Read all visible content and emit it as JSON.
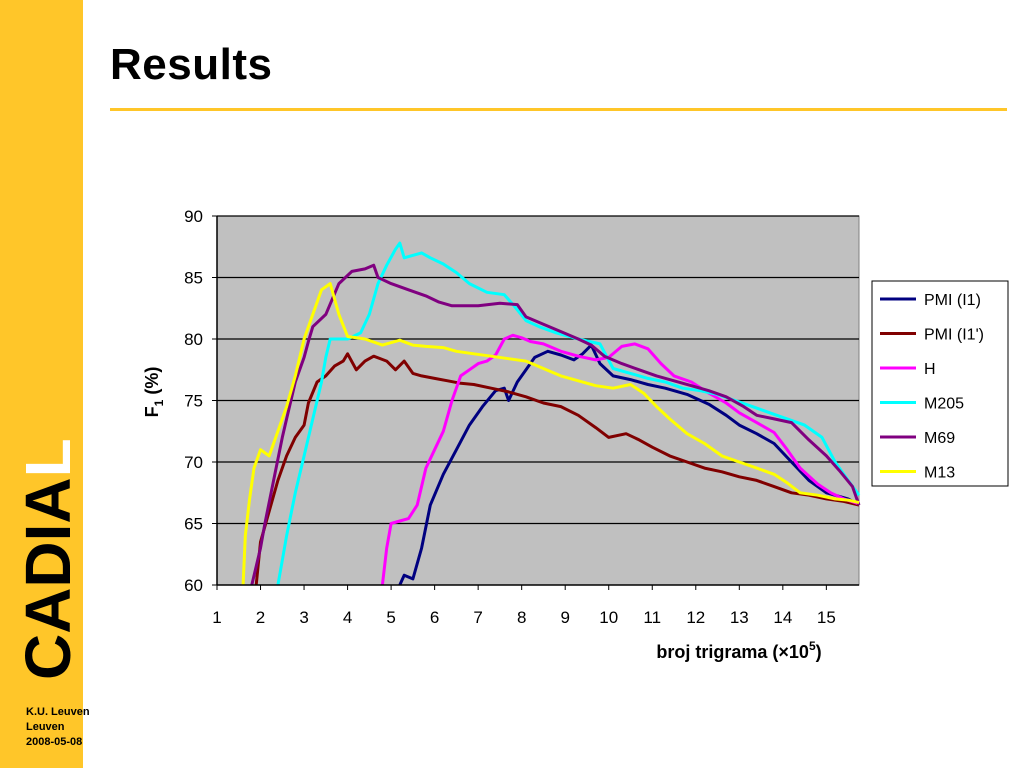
{
  "slide": {
    "title": "Results",
    "footer": [
      "K.U. Leuven",
      "Leuven",
      "2008-05-08"
    ],
    "logo_text": "CADIAL"
  },
  "colors": {
    "accent": "#ffc629",
    "plot_bg": "#c0c0c0"
  },
  "chart_data": {
    "type": "line",
    "title": "",
    "xlabel_main": "broj trigrama (×10",
    "xlabel_sup": "5",
    "xlabel_end": ")",
    "ylabel_main": "F",
    "ylabel_sub": "1",
    "ylabel_end": " (%)",
    "xlim": [
      1,
      15.75
    ],
    "ylim": [
      60,
      90
    ],
    "xticks": [
      1,
      2,
      3,
      4,
      5,
      6,
      7,
      8,
      9,
      10,
      11,
      12,
      13,
      14,
      15
    ],
    "yticks": [
      60,
      65,
      70,
      75,
      80,
      85,
      90
    ],
    "grid": "horizontal",
    "legend_position": "right",
    "series": [
      {
        "name": "PMI (I1)",
        "color": "#000080",
        "points": [
          [
            5.2,
            60
          ],
          [
            5.3,
            60.8
          ],
          [
            5.5,
            60.5
          ],
          [
            5.7,
            63
          ],
          [
            5.9,
            66.5
          ],
          [
            6.2,
            69
          ],
          [
            6.5,
            71
          ],
          [
            6.8,
            73
          ],
          [
            7.1,
            74.5
          ],
          [
            7.4,
            75.8
          ],
          [
            7.6,
            76
          ],
          [
            7.7,
            75
          ],
          [
            7.9,
            76.5
          ],
          [
            8.1,
            77.5
          ],
          [
            8.3,
            78.5
          ],
          [
            8.6,
            79
          ],
          [
            8.9,
            78.7
          ],
          [
            9.2,
            78.3
          ],
          [
            9.4,
            78.8
          ],
          [
            9.6,
            79.5
          ],
          [
            9.8,
            78
          ],
          [
            10.1,
            77
          ],
          [
            10.5,
            76.7
          ],
          [
            10.9,
            76.3
          ],
          [
            11.3,
            76
          ],
          [
            11.8,
            75.5
          ],
          [
            12.3,
            74.7
          ],
          [
            12.7,
            73.8
          ],
          [
            13.0,
            73
          ],
          [
            13.4,
            72.3
          ],
          [
            13.8,
            71.5
          ],
          [
            14.2,
            70
          ],
          [
            14.6,
            68.5
          ],
          [
            15.0,
            67.5
          ],
          [
            15.3,
            67.2
          ],
          [
            15.5,
            67
          ],
          [
            15.75,
            66.5
          ]
        ]
      },
      {
        "name": "PMI (I1')",
        "color": "#800000",
        "points": [
          [
            1.9,
            60
          ],
          [
            2.0,
            63.5
          ],
          [
            2.2,
            66
          ],
          [
            2.4,
            68.5
          ],
          [
            2.6,
            70.5
          ],
          [
            2.8,
            72
          ],
          [
            3.0,
            73
          ],
          [
            3.1,
            74.8
          ],
          [
            3.3,
            76.5
          ],
          [
            3.5,
            77
          ],
          [
            3.7,
            77.8
          ],
          [
            3.9,
            78.2
          ],
          [
            4.0,
            78.8
          ],
          [
            4.2,
            77.5
          ],
          [
            4.4,
            78.2
          ],
          [
            4.6,
            78.6
          ],
          [
            4.9,
            78.2
          ],
          [
            5.1,
            77.5
          ],
          [
            5.3,
            78.2
          ],
          [
            5.5,
            77.2
          ],
          [
            5.7,
            77
          ],
          [
            6.0,
            76.8
          ],
          [
            6.3,
            76.6
          ],
          [
            6.6,
            76.4
          ],
          [
            6.9,
            76.3
          ],
          [
            7.3,
            76
          ],
          [
            7.7,
            75.7
          ],
          [
            8.1,
            75.3
          ],
          [
            8.5,
            74.8
          ],
          [
            8.9,
            74.5
          ],
          [
            9.3,
            73.8
          ],
          [
            9.7,
            72.8
          ],
          [
            10.0,
            72
          ],
          [
            10.4,
            72.3
          ],
          [
            10.7,
            71.8
          ],
          [
            11.0,
            71.2
          ],
          [
            11.4,
            70.5
          ],
          [
            11.8,
            70
          ],
          [
            12.2,
            69.5
          ],
          [
            12.6,
            69.2
          ],
          [
            13.0,
            68.8
          ],
          [
            13.4,
            68.5
          ],
          [
            13.8,
            68
          ],
          [
            14.2,
            67.5
          ],
          [
            14.6,
            67.3
          ],
          [
            15.0,
            67
          ],
          [
            15.4,
            66.8
          ],
          [
            15.75,
            66.5
          ]
        ]
      },
      {
        "name": "H",
        "color": "#ff00ff",
        "points": [
          [
            4.8,
            60
          ],
          [
            4.9,
            63
          ],
          [
            5.0,
            65
          ],
          [
            5.2,
            65.2
          ],
          [
            5.4,
            65.4
          ],
          [
            5.6,
            66.5
          ],
          [
            5.8,
            69.5
          ],
          [
            6.0,
            71
          ],
          [
            6.2,
            72.5
          ],
          [
            6.4,
            75
          ],
          [
            6.6,
            77
          ],
          [
            6.8,
            77.5
          ],
          [
            7.0,
            78
          ],
          [
            7.2,
            78.2
          ],
          [
            7.4,
            78.7
          ],
          [
            7.6,
            80
          ],
          [
            7.8,
            80.3
          ],
          [
            8.0,
            80.1
          ],
          [
            8.2,
            79.8
          ],
          [
            8.5,
            79.6
          ],
          [
            8.9,
            79
          ],
          [
            9.3,
            78.6
          ],
          [
            9.7,
            78.3
          ],
          [
            10.0,
            78.5
          ],
          [
            10.3,
            79.4
          ],
          [
            10.6,
            79.6
          ],
          [
            10.9,
            79.2
          ],
          [
            11.2,
            78
          ],
          [
            11.5,
            77
          ],
          [
            11.9,
            76.5
          ],
          [
            12.3,
            75.6
          ],
          [
            12.7,
            74.8
          ],
          [
            13.0,
            74
          ],
          [
            13.4,
            73.2
          ],
          [
            13.8,
            72.4
          ],
          [
            14.1,
            71
          ],
          [
            14.4,
            69.5
          ],
          [
            14.8,
            68.2
          ],
          [
            15.1,
            67.5
          ],
          [
            15.4,
            67
          ],
          [
            15.75,
            66.6
          ]
        ]
      },
      {
        "name": "M205",
        "color": "#00ffff",
        "points": [
          [
            2.4,
            60
          ],
          [
            2.5,
            62
          ],
          [
            2.6,
            64
          ],
          [
            2.8,
            67.5
          ],
          [
            3.0,
            70.5
          ],
          [
            3.2,
            73.5
          ],
          [
            3.4,
            76.5
          ],
          [
            3.5,
            78.5
          ],
          [
            3.6,
            80
          ],
          [
            4.0,
            80
          ],
          [
            4.3,
            80.5
          ],
          [
            4.5,
            82
          ],
          [
            4.7,
            84.5
          ],
          [
            4.9,
            86
          ],
          [
            5.1,
            87.3
          ],
          [
            5.2,
            87.8
          ],
          [
            5.3,
            86.6
          ],
          [
            5.7,
            87
          ],
          [
            5.9,
            86.6
          ],
          [
            6.2,
            86.1
          ],
          [
            6.5,
            85.4
          ],
          [
            6.8,
            84.5
          ],
          [
            7.2,
            83.8
          ],
          [
            7.6,
            83.6
          ],
          [
            7.8,
            82.8
          ],
          [
            8.1,
            81.5
          ],
          [
            8.4,
            81
          ],
          [
            8.8,
            80.5
          ],
          [
            9.3,
            80
          ],
          [
            9.8,
            79.6
          ],
          [
            10.1,
            77.6
          ],
          [
            10.5,
            77.2
          ],
          [
            10.9,
            76.8
          ],
          [
            11.3,
            76.5
          ],
          [
            11.7,
            76
          ],
          [
            12.1,
            75.8
          ],
          [
            12.5,
            75.5
          ],
          [
            12.9,
            75
          ],
          [
            13.3,
            74.5
          ],
          [
            13.7,
            74
          ],
          [
            14.1,
            73.5
          ],
          [
            14.5,
            73
          ],
          [
            14.9,
            72
          ],
          [
            15.2,
            70
          ],
          [
            15.5,
            68.5
          ],
          [
            15.75,
            67.3
          ]
        ]
      },
      {
        "name": "M69",
        "color": "#800080",
        "points": [
          [
            1.8,
            60
          ],
          [
            2.0,
            63
          ],
          [
            2.1,
            65
          ],
          [
            2.3,
            68.5
          ],
          [
            2.5,
            72
          ],
          [
            2.6,
            73.5
          ],
          [
            2.8,
            76.5
          ],
          [
            3.0,
            78.5
          ],
          [
            3.1,
            79.8
          ],
          [
            3.2,
            81
          ],
          [
            3.5,
            82
          ],
          [
            3.8,
            84.5
          ],
          [
            4.1,
            85.5
          ],
          [
            4.4,
            85.7
          ],
          [
            4.6,
            86
          ],
          [
            4.7,
            85
          ],
          [
            5.0,
            84.5
          ],
          [
            5.4,
            84
          ],
          [
            5.8,
            83.5
          ],
          [
            6.1,
            83
          ],
          [
            6.4,
            82.7
          ],
          [
            7.0,
            82.7
          ],
          [
            7.5,
            82.9
          ],
          [
            7.9,
            82.8
          ],
          [
            8.1,
            81.8
          ],
          [
            8.5,
            81.2
          ],
          [
            8.9,
            80.6
          ],
          [
            9.3,
            80
          ],
          [
            9.6,
            79.5
          ],
          [
            9.9,
            78.6
          ],
          [
            10.3,
            78
          ],
          [
            10.7,
            77.5
          ],
          [
            11.1,
            77
          ],
          [
            11.5,
            76.6
          ],
          [
            11.9,
            76.2
          ],
          [
            12.3,
            75.8
          ],
          [
            12.7,
            75.3
          ],
          [
            13.1,
            74.5
          ],
          [
            13.4,
            73.8
          ],
          [
            13.8,
            73.5
          ],
          [
            14.2,
            73.2
          ],
          [
            14.6,
            71.8
          ],
          [
            15.0,
            70.5
          ],
          [
            15.3,
            69.3
          ],
          [
            15.6,
            68
          ],
          [
            15.75,
            66.5
          ]
        ]
      },
      {
        "name": "M13",
        "color": "#ffff00",
        "points": [
          [
            1.6,
            60
          ],
          [
            1.65,
            64
          ],
          [
            1.75,
            67
          ],
          [
            1.85,
            69.5
          ],
          [
            2.0,
            71
          ],
          [
            2.2,
            70.5
          ],
          [
            2.4,
            72.5
          ],
          [
            2.6,
            74.5
          ],
          [
            2.8,
            77
          ],
          [
            3.0,
            80
          ],
          [
            3.2,
            82
          ],
          [
            3.4,
            84
          ],
          [
            3.6,
            84.5
          ],
          [
            3.8,
            82
          ],
          [
            4.0,
            80.2
          ],
          [
            4.4,
            80
          ],
          [
            4.8,
            79.5
          ],
          [
            5.2,
            79.9
          ],
          [
            5.5,
            79.5
          ],
          [
            5.8,
            79.4
          ],
          [
            6.2,
            79.3
          ],
          [
            6.5,
            79
          ],
          [
            6.9,
            78.8
          ],
          [
            7.3,
            78.6
          ],
          [
            7.7,
            78.4
          ],
          [
            8.1,
            78.2
          ],
          [
            8.5,
            77.6
          ],
          [
            8.9,
            77
          ],
          [
            9.3,
            76.6
          ],
          [
            9.7,
            76.2
          ],
          [
            10.1,
            76
          ],
          [
            10.5,
            76.3
          ],
          [
            10.8,
            75.6
          ],
          [
            11.1,
            74.5
          ],
          [
            11.4,
            73.5
          ],
          [
            11.8,
            72.3
          ],
          [
            12.2,
            71.5
          ],
          [
            12.6,
            70.5
          ],
          [
            13.0,
            70
          ],
          [
            13.4,
            69.5
          ],
          [
            13.8,
            69
          ],
          [
            14.1,
            68.3
          ],
          [
            14.4,
            67.5
          ],
          [
            14.8,
            67.3
          ],
          [
            15.2,
            67
          ],
          [
            15.5,
            66.9
          ],
          [
            15.75,
            66.7
          ]
        ]
      }
    ]
  }
}
